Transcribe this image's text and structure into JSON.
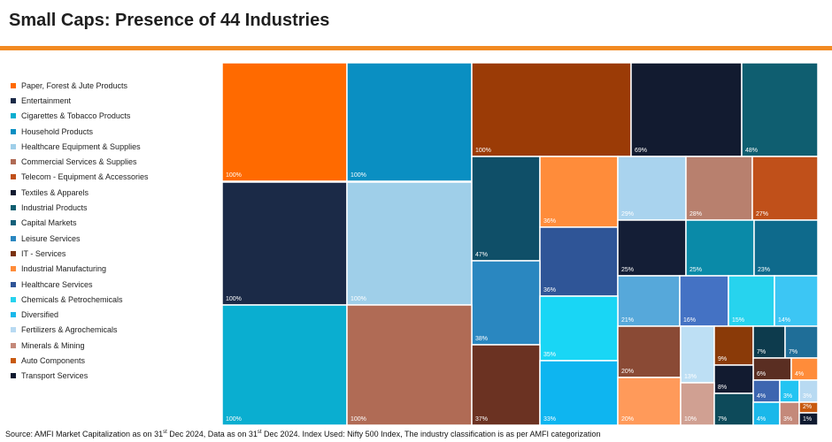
{
  "title": "Small Caps: Presence of 44 Industries",
  "footer": {
    "text1": "Source: AMFI Market Capitalization as on 31",
    "sup1": "st",
    "text2": " Dec 2024, Data as on 31",
    "sup2": "st",
    "text3": " Dec 2024. Index Used: Nifty 500 Index, The industry classification is as per AMFI categorization"
  },
  "chart_data": {
    "type": "treemap",
    "title": "Small Caps: Presence of 44 Industries",
    "legend_position": "left",
    "legend": [
      {
        "label": "Paper, Forest & Jute Products",
        "color": "#ff6a00"
      },
      {
        "label": "Entertainment",
        "color": "#1b2a47"
      },
      {
        "label": "Cigarettes & Tobacco Products",
        "color": "#0aaed0"
      },
      {
        "label": "Household Products",
        "color": "#0a8fc2"
      },
      {
        "label": "Healthcare Equipment & Supplies",
        "color": "#9fcfe9"
      },
      {
        "label": "Commercial Services & Supplies",
        "color": "#b06b55"
      },
      {
        "label": "Telecom - Equipment & Accessories",
        "color": "#c0501a"
      },
      {
        "label": "Textiles & Apparels",
        "color": "#121b30"
      },
      {
        "label": "Industrial Products",
        "color": "#0f5e70"
      },
      {
        "label": "Capital Markets",
        "color": "#14607a"
      },
      {
        "label": "Leisure Services",
        "color": "#2a87c0"
      },
      {
        "label": "IT - Services",
        "color": "#7a3210"
      },
      {
        "label": "Industrial Manufacturing",
        "color": "#ff8c3a"
      },
      {
        "label": "Healthcare Services",
        "color": "#2f5597"
      },
      {
        "label": "Chemicals & Petrochemicals",
        "color": "#27d3ee"
      },
      {
        "label": "Diversified",
        "color": "#1ab8ea"
      },
      {
        "label": "Fertilizers & Agrochemicals",
        "color": "#b8daf2"
      },
      {
        "label": "Minerals & Mining",
        "color": "#c4897a"
      },
      {
        "label": "Auto Components",
        "color": "#c85a10"
      },
      {
        "label": "Transport Services",
        "color": "#0f1a30"
      }
    ],
    "values": [
      {
        "value": 100,
        "label": "100%",
        "color": "#ff6a00"
      },
      {
        "value": 100,
        "label": "100%",
        "color": "#0a8fc2"
      },
      {
        "value": 100,
        "label": "100%",
        "color": "#9b3b06"
      },
      {
        "value": 69,
        "label": "69%",
        "color": "#121b30"
      },
      {
        "value": 48,
        "label": "48%",
        "color": "#0f5e70"
      },
      {
        "value": 100,
        "label": "100%",
        "color": "#1b2a47"
      },
      {
        "value": 100,
        "label": "100%",
        "color": "#9fcfe9"
      },
      {
        "value": 47,
        "label": "47%",
        "color": "#0f4f68"
      },
      {
        "value": 36,
        "label": "36%",
        "color": "#ff8c3a"
      },
      {
        "value": 29,
        "label": "29%",
        "color": "#a9d3ee"
      },
      {
        "value": 28,
        "label": "28%",
        "color": "#b8806e"
      },
      {
        "value": 27,
        "label": "27%",
        "color": "#c0501a"
      },
      {
        "value": 36,
        "label": "36%",
        "color": "#2f5597"
      },
      {
        "value": 25,
        "label": "25%",
        "color": "#141e36"
      },
      {
        "value": 25,
        "label": "25%",
        "color": "#0a8aa8"
      },
      {
        "value": 23,
        "label": "23%",
        "color": "#0e6a8c"
      },
      {
        "value": 38,
        "label": "38%",
        "color": "#2a87c0"
      },
      {
        "value": 21,
        "label": "21%",
        "color": "#56a8da"
      },
      {
        "value": 16,
        "label": "16%",
        "color": "#4472c4"
      },
      {
        "value": 15,
        "label": "15%",
        "color": "#27d3ee"
      },
      {
        "value": 14,
        "label": "14%",
        "color": "#3cc6f4"
      },
      {
        "value": 100,
        "label": "100%",
        "color": "#0aaed0"
      },
      {
        "value": 100,
        "label": "100%",
        "color": "#b06b55"
      },
      {
        "value": 35,
        "label": "35%",
        "color": "#19d6f5"
      },
      {
        "value": 20,
        "label": "20%",
        "color": "#8a4a35"
      },
      {
        "value": 13,
        "label": "13%",
        "color": "#bddff4"
      },
      {
        "value": 9,
        "label": "9%",
        "color": "#8a3a08"
      },
      {
        "value": 7,
        "label": "7%",
        "color": "#0d3b4d"
      },
      {
        "value": 7,
        "label": "7%",
        "color": "#1f6e98"
      },
      {
        "value": 6,
        "label": "6%",
        "color": "#5a2e22"
      },
      {
        "value": 4,
        "label": "4%",
        "color": "#ff8c3a"
      },
      {
        "value": 8,
        "label": "8%",
        "color": "#121b30"
      },
      {
        "value": 4,
        "label": "4%",
        "color": "#3d66b0"
      },
      {
        "value": 3,
        "label": "3%",
        "color": "#23c4f2"
      },
      {
        "value": 3,
        "label": "3%",
        "color": "#b8daf2"
      },
      {
        "value": 37,
        "label": "37%",
        "color": "#6b3222"
      },
      {
        "value": 33,
        "label": "33%",
        "color": "#0eb5f0"
      },
      {
        "value": 20,
        "label": "20%",
        "color": "#ff9a5a"
      },
      {
        "value": 10,
        "label": "10%",
        "color": "#d0a092"
      },
      {
        "value": 7,
        "label": "7%",
        "color": "#0d4a5a"
      },
      {
        "value": 4,
        "label": "4%",
        "color": "#1ab8ea"
      },
      {
        "value": 3,
        "label": "3%",
        "color": "#c4897a"
      },
      {
        "value": 2,
        "label": "2%",
        "color": "#c85a10"
      },
      {
        "value": 1,
        "label": "1%",
        "color": "#0f1a30"
      }
    ]
  }
}
